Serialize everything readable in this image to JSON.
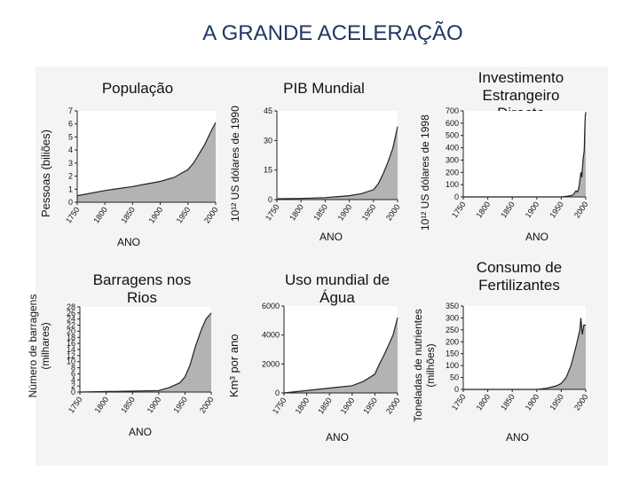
{
  "page": {
    "title": "A GRANDE ACELERAÇÃO"
  },
  "chart_data": [
    {
      "id": "populacao",
      "type": "area",
      "title": "População",
      "ylabel": "Pessoas (biliões)",
      "xlabel": "ANO",
      "x": [
        1750,
        1800,
        1850,
        1875,
        1900,
        1925,
        1950,
        1960,
        1970,
        1980,
        1990,
        2000
      ],
      "y": [
        0.5,
        0.9,
        1.2,
        1.4,
        1.6,
        1.9,
        2.5,
        3.0,
        3.7,
        4.4,
        5.3,
        6.1
      ],
      "xlim": [
        1750,
        2000
      ],
      "ylim": [
        0,
        7
      ],
      "xticks": [
        "1750",
        "1800",
        "1850",
        "1900",
        "1950",
        "2000"
      ],
      "yticks": [
        "0",
        "1",
        "2",
        "3",
        "4",
        "5",
        "6",
        "7"
      ]
    },
    {
      "id": "pib",
      "type": "area",
      "title": "PIB Mundial",
      "ylabel": "10¹² US dólares de 1990",
      "xlabel": "ANO",
      "x": [
        1750,
        1800,
        1850,
        1900,
        1925,
        1950,
        1960,
        1970,
        1980,
        1990,
        2000
      ],
      "y": [
        0.4,
        0.6,
        1.0,
        2.0,
        3.0,
        5.0,
        8.0,
        13.0,
        19.0,
        26.0,
        37.0
      ],
      "xlim": [
        1750,
        2000
      ],
      "ylim": [
        0,
        45
      ],
      "xticks": [
        "1750",
        "1800",
        "1850",
        "1900",
        "1950",
        "2000"
      ],
      "yticks": [
        "0",
        "15",
        "30",
        "45"
      ]
    },
    {
      "id": "investimento",
      "type": "area",
      "title": "Investimento Estrangeiro Directo",
      "ylabel": "10¹² US dólares de 1998",
      "xlabel": "ANO",
      "x": [
        1750,
        1900,
        1950,
        1960,
        1970,
        1975,
        1980,
        1983,
        1985,
        1987,
        1990,
        1992,
        1993,
        1995,
        1996,
        1997,
        1998,
        1999,
        2000
      ],
      "y": [
        0,
        0,
        0,
        5,
        10,
        20,
        50,
        40,
        60,
        100,
        200,
        160,
        220,
        320,
        350,
        380,
        550,
        650,
        690
      ],
      "xlim": [
        1750,
        2000
      ],
      "ylim": [
        0,
        700
      ],
      "xticks": [
        "1750",
        "1800",
        "1850",
        "1900",
        "1950",
        "2000"
      ],
      "yticks": [
        "0",
        "100",
        "200",
        "300",
        "400",
        "500",
        "600",
        "700"
      ]
    },
    {
      "id": "barragens",
      "type": "area",
      "title": "Barragens nos Rios",
      "ylabel": "Número de barragens (milhares)",
      "xlabel": "ANO",
      "x": [
        1750,
        1900,
        1920,
        1940,
        1950,
        1960,
        1970,
        1980,
        1990,
        2000
      ],
      "y": [
        0,
        0.5,
        1.5,
        3.0,
        5.0,
        9.0,
        15.0,
        20.0,
        24.0,
        26.0
      ],
      "xlim": [
        1750,
        2000
      ],
      "ylim": [
        0,
        28
      ],
      "xticks": [
        "1750",
        "1800",
        "1850",
        "1900",
        "1950",
        "2000"
      ],
      "yticks": [
        "0",
        "2",
        "4",
        "6",
        "8",
        "10",
        "12",
        "14",
        "16",
        "18",
        "20",
        "22",
        "24",
        "26",
        "28"
      ]
    },
    {
      "id": "agua",
      "type": "area",
      "title": "Uso mundial de Água",
      "ylabel": "Km³ por ano",
      "xlabel": "ANO",
      "x": [
        1750,
        1900,
        1925,
        1950,
        1960,
        1970,
        1980,
        1990,
        2000
      ],
      "y": [
        0,
        500,
        800,
        1300,
        2000,
        2600,
        3300,
        4000,
        5200
      ],
      "xlim": [
        1750,
        2000
      ],
      "ylim": [
        0,
        6000
      ],
      "xticks": [
        "1750",
        "1800",
        "1850",
        "1900",
        "1950",
        "2000"
      ],
      "yticks": [
        "0",
        "2000",
        "4000",
        "6000"
      ]
    },
    {
      "id": "fertilizantes",
      "type": "area",
      "title": "Consumo de Fertilizantes",
      "ylabel": "Toneladas de nutrientes (milhões)",
      "xlabel": "ANO",
      "x": [
        1750,
        1900,
        1920,
        1940,
        1950,
        1960,
        1970,
        1980,
        1988,
        1990,
        1993,
        1996,
        2000
      ],
      "y": [
        0,
        0,
        5,
        15,
        25,
        50,
        100,
        180,
        250,
        300,
        230,
        270,
        270
      ],
      "xlim": [
        1750,
        2000
      ],
      "ylim": [
        0,
        350
      ],
      "xticks": [
        "1750",
        "1800",
        "1850",
        "1900",
        "1950",
        "2000"
      ],
      "yticks": [
        "0",
        "50",
        "100",
        "150",
        "200",
        "250",
        "300",
        "350"
      ]
    }
  ]
}
